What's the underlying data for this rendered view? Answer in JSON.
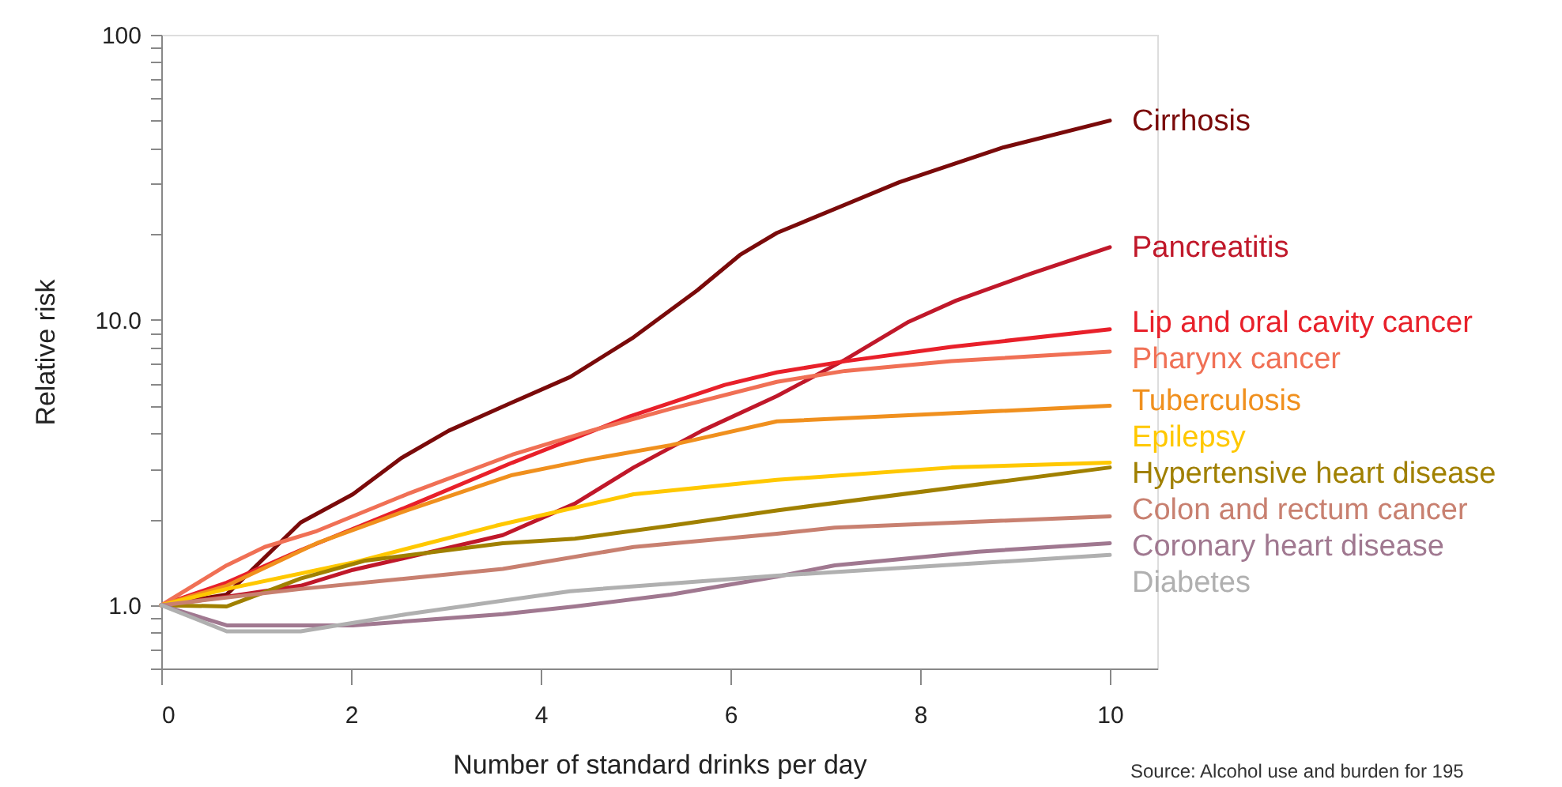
{
  "chart_data": {
    "type": "line",
    "xlabel": "Number of standard drinks per day",
    "ylabel": "Relative risk",
    "log": "y",
    "grid": false,
    "legend": false,
    "marker": "none",
    "line_style": "solid",
    "xlim": [
      0,
      10.5
    ],
    "xticks": [
      0,
      2,
      4,
      6,
      8,
      10
    ],
    "ylim": [
      0.6,
      100
    ],
    "yticks": [
      {
        "value": 0.6,
        "label": null
      },
      {
        "value": 0.7,
        "label": null
      },
      {
        "value": 0.8,
        "label": null
      },
      {
        "value": 0.9,
        "label": null
      },
      {
        "value": 1,
        "label": "1.0"
      },
      {
        "value": 2,
        "label": null
      },
      {
        "value": 3,
        "label": null
      },
      {
        "value": 4,
        "label": null
      },
      {
        "value": 5,
        "label": null
      },
      {
        "value": 6,
        "label": null
      },
      {
        "value": 7,
        "label": null
      },
      {
        "value": 8,
        "label": null
      },
      {
        "value": 9,
        "label": null
      },
      {
        "value": 10,
        "label": "10.0"
      },
      {
        "value": 20,
        "label": null
      },
      {
        "value": 30,
        "label": null
      },
      {
        "value": 40,
        "label": null
      },
      {
        "value": 50,
        "label": null
      },
      {
        "value": 60,
        "label": null
      },
      {
        "value": 70,
        "label": null
      },
      {
        "value": 80,
        "label": null
      },
      {
        "value": 90,
        "label": null
      },
      {
        "value": 100,
        "label": "100"
      }
    ],
    "series": [
      {
        "name": "Cirrhosis",
        "color": "#7a0a0a",
        "x": [
          0,
          0.69,
          1.47,
          2.02,
          2.53,
          3.03,
          3.7,
          4.31,
          4.98,
          5.65,
          6.1,
          6.49,
          7.78,
          8.88,
          10
        ],
        "values": [
          1.0,
          1.09,
          1.95,
          2.45,
          3.28,
          4.09,
          5.14,
          6.31,
          8.7,
          12.7,
          16.9,
          20.2,
          30.4,
          40.3,
          50
        ]
      },
      {
        "name": "Pancreatitis",
        "color": "#c0182a",
        "x": [
          0,
          0.69,
          1.47,
          2.02,
          2.59,
          3.6,
          4.36,
          4.98,
          5.7,
          6.49,
          7.21,
          7.88,
          8.38,
          9.16,
          10
        ],
        "values": [
          1.0,
          1.07,
          1.17,
          1.33,
          1.47,
          1.76,
          2.27,
          3.04,
          4.09,
          5.41,
          7.26,
          9.86,
          11.7,
          14.5,
          18
        ]
      },
      {
        "name": "Lip and oral cavity cancer",
        "color": "#e8202a",
        "x": [
          0,
          0.69,
          1.47,
          2.59,
          3.7,
          4.93,
          5.94,
          6.49,
          7.21,
          8.33,
          10
        ],
        "values": [
          1.0,
          1.2,
          1.56,
          2.21,
          3.16,
          4.58,
          5.92,
          6.55,
          7.17,
          8.05,
          9.27
        ]
      },
      {
        "name": "Pharynx cancer",
        "color": "#f07055",
        "x": [
          0,
          0.69,
          1.09,
          1.64,
          2.59,
          3.7,
          4.53,
          5.37,
          6.49,
          7.21,
          8.33,
          10
        ],
        "values": [
          1.0,
          1.38,
          1.6,
          1.82,
          2.45,
          3.37,
          4.09,
          4.88,
          6.07,
          6.63,
          7.17,
          7.75
        ]
      },
      {
        "name": "Tuberculosis",
        "color": "#f0901e",
        "x": [
          0,
          0.69,
          1.64,
          2.59,
          3.7,
          4.53,
          5.37,
          6.49,
          10
        ],
        "values": [
          1.0,
          1.17,
          1.65,
          2.15,
          2.86,
          3.25,
          3.64,
          4.41,
          5.0
        ]
      },
      {
        "name": "Epilepsy",
        "color": "#ffc800",
        "x": [
          0,
          0.69,
          2.02,
          3.53,
          4.98,
          6.49,
          8.33,
          10
        ],
        "values": [
          1.0,
          1.14,
          1.41,
          1.9,
          2.45,
          2.75,
          3.04,
          3.16
        ]
      },
      {
        "name": "Hypertensive heart disease",
        "color": "#a08000",
        "x": [
          0,
          0.69,
          1.47,
          2.14,
          3.6,
          4.36,
          5.37,
          6.49,
          10
        ],
        "values": [
          1.0,
          0.99,
          1.24,
          1.43,
          1.65,
          1.71,
          1.9,
          2.15,
          3.04
        ]
      },
      {
        "name": "Colon and rectum cancer",
        "color": "#c88070",
        "x": [
          0,
          1.47,
          3.6,
          4.98,
          6.49,
          7.1,
          10
        ],
        "values": [
          1.0,
          1.14,
          1.34,
          1.6,
          1.78,
          1.87,
          2.05
        ]
      },
      {
        "name": "Coronary heart disease",
        "color": "#a07890",
        "x": [
          0,
          0.69,
          2.02,
          3.6,
          4.36,
          5.37,
          6.49,
          7.1,
          8.61,
          10
        ],
        "values": [
          1.0,
          0.85,
          0.85,
          0.93,
          0.99,
          1.09,
          1.26,
          1.38,
          1.54,
          1.65
        ]
      },
      {
        "name": "Diabetes",
        "color": "#b0b0b0",
        "x": [
          0,
          0.69,
          1.47,
          2.59,
          4.31,
          6.49,
          10
        ],
        "values": [
          1.0,
          0.81,
          0.81,
          0.93,
          1.12,
          1.27,
          1.5
        ]
      }
    ],
    "annotations": [
      "Source: Alcohol use and burden for 195"
    ]
  }
}
